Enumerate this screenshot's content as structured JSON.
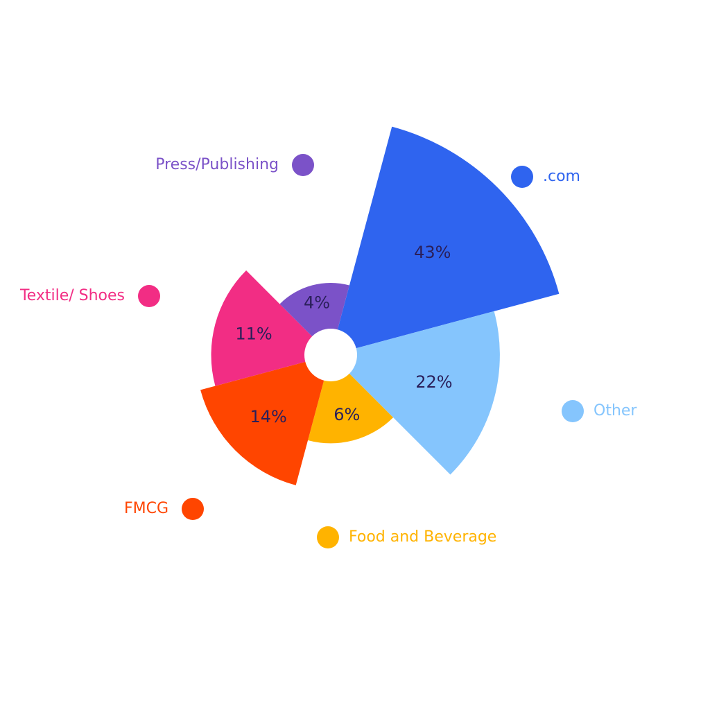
{
  "chart_data": {
    "type": "rose",
    "categories": [
      ".com",
      "Other",
      "Food and Beverage",
      "FMCG",
      "Textile/ Shoes",
      "Press/Publishing"
    ],
    "values": [
      43,
      22,
      6,
      14,
      11,
      4
    ],
    "value_labels": [
      "43%",
      "22%",
      "6%",
      "14%",
      "11%",
      "4%"
    ],
    "colors": [
      "#2f64ef",
      "#85c5fd",
      "#ffb300",
      "#ff4500",
      "#f22d84",
      "#7b52c8"
    ]
  }
}
